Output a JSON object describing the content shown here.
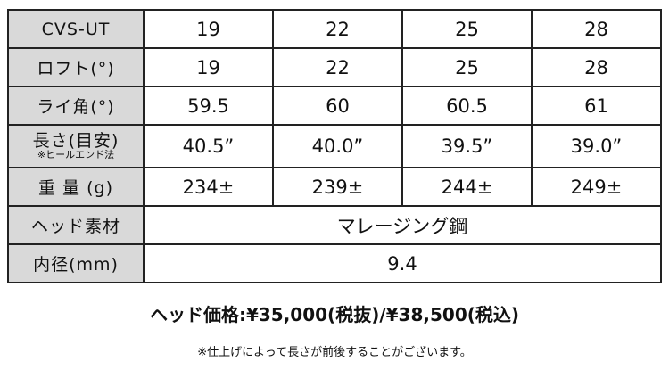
{
  "header": {
    "label": "CVS-UT",
    "lofts": [
      "19",
      "22",
      "25",
      "28"
    ]
  },
  "rows": [
    {
      "label": "ロフト(°)",
      "values": [
        "19",
        "22",
        "25",
        "28"
      ]
    },
    {
      "label": "ライ角(°)",
      "values": [
        "59.5",
        "60",
        "60.5",
        "61"
      ]
    },
    {
      "label": "長さ(目安)",
      "sublabel": "※ヒールエンド法",
      "values": [
        "40.5”",
        "40.0”",
        "39.5”",
        "39.0”"
      ]
    },
    {
      "label": "重 量 (g)",
      "values": [
        "234±",
        "239±",
        "244±",
        "249±"
      ]
    }
  ],
  "material": {
    "label": "ヘッド素材",
    "value": "マレージング鋼"
  },
  "diameter": {
    "label": "内径(mm)",
    "value": "9.4"
  },
  "price": "ヘッド価格:¥35,000(税抜)/¥38,500(税込)",
  "note": "※仕上げによって長さが前後することがございます。"
}
